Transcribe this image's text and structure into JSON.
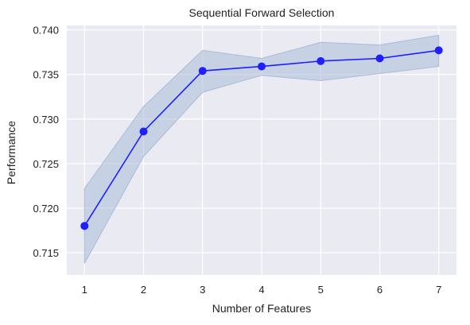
{
  "chart_data": {
    "type": "line",
    "title": "Sequential Forward Selection",
    "xlabel": "Number of Features",
    "ylabel": "Performance",
    "x": [
      1,
      2,
      3,
      4,
      5,
      6,
      7
    ],
    "x_ticks": [
      "1",
      "2",
      "3",
      "4",
      "5",
      "6",
      "7"
    ],
    "y_ticks": [
      "0.715",
      "0.720",
      "0.725",
      "0.730",
      "0.735",
      "0.740"
    ],
    "xlim": [
      0.7,
      7.3
    ],
    "ylim": [
      0.7125,
      0.7405
    ],
    "grid": true,
    "series": [
      {
        "values": [
          0.718,
          0.7286,
          0.7354,
          0.7359,
          0.7365,
          0.7368,
          0.7377
        ],
        "band_upper": [
          0.7222,
          0.7314,
          0.7377,
          0.7368,
          0.7386,
          0.7383,
          0.7394
        ],
        "band_lower": [
          0.7138,
          0.7258,
          0.733,
          0.7349,
          0.7343,
          0.7351,
          0.7359
        ],
        "color": "#1f1fff",
        "band_color": "#a9bcd9"
      }
    ],
    "colors": {
      "plot_background": "#eaeaf2",
      "grid": "#ffffff",
      "text": "#222222"
    }
  }
}
